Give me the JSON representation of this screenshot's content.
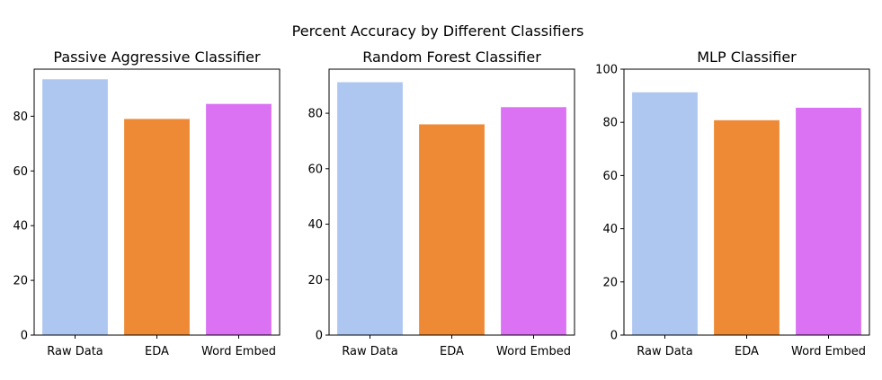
{
  "figure": {
    "suptitle": "Percent Accuracy by Different Classifiers"
  },
  "chart_data": [
    {
      "type": "bar",
      "title": "Passive Aggressive Classifier",
      "xlabel": "",
      "ylabel": "",
      "categories": [
        "Raw Data",
        "EDA",
        "Word Embed"
      ],
      "values": [
        93.5,
        79.0,
        84.5
      ],
      "colors": [
        "#aec7f0",
        "#ee8a35",
        "#da72f3"
      ],
      "ylim": [
        0,
        97.2
      ],
      "yticks": [
        0,
        20,
        40,
        60,
        80
      ],
      "grid": false
    },
    {
      "type": "bar",
      "title": "Random Forest Classifier",
      "xlabel": "",
      "ylabel": "",
      "categories": [
        "Raw Data",
        "EDA",
        "Word Embed"
      ],
      "values": [
        91.2,
        76.0,
        82.2
      ],
      "colors": [
        "#aec7f0",
        "#ee8a35",
        "#da72f3"
      ],
      "ylim": [
        0,
        95.9
      ],
      "yticks": [
        0,
        20,
        40,
        60,
        80
      ],
      "grid": false
    },
    {
      "type": "bar",
      "title": "MLP Classifier",
      "xlabel": "",
      "ylabel": "",
      "categories": [
        "Raw Data",
        "EDA",
        "Word Embed"
      ],
      "values": [
        91.3,
        80.8,
        85.5
      ],
      "colors": [
        "#aec7f0",
        "#ee8a35",
        "#da72f3"
      ],
      "ylim": [
        0,
        100
      ],
      "yticks": [
        0,
        20,
        40,
        60,
        80,
        100
      ],
      "grid": false
    }
  ]
}
